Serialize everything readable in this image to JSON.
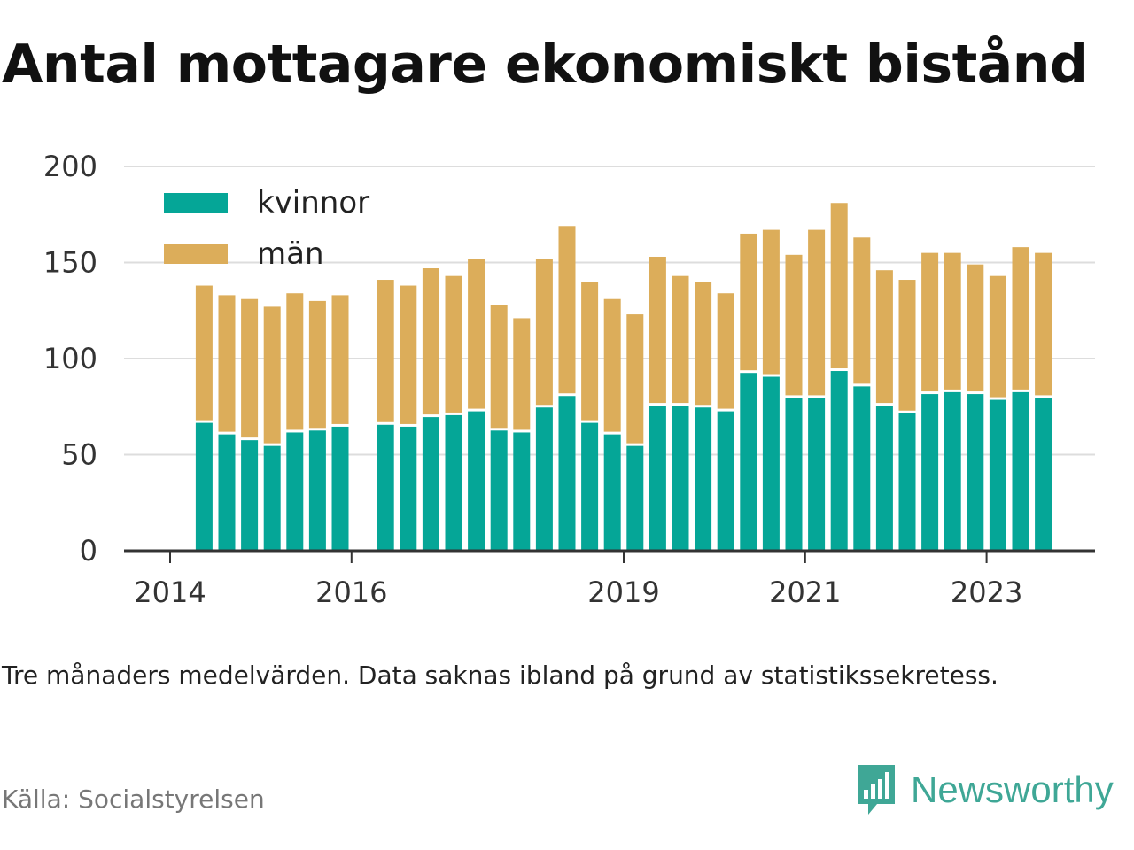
{
  "title": "Antal mottagare ekonomiskt bistånd",
  "note": "Tre månaders medelvärden. Data saknas ibland på grund av statistikssekretess.",
  "source": "Källa: Socialstyrelsen",
  "brand": {
    "name": "Newsworthy",
    "icon": "newsworthy-logo-icon"
  },
  "colors": {
    "kvinnor": "#05a697",
    "man": "#dcad5a",
    "grid": "#dddddd",
    "axis": "#333333"
  },
  "chart_data": {
    "type": "bar",
    "stacked": true,
    "title": "Antal mottagare ekonomiskt bistånd",
    "xlabel": "",
    "ylabel": "",
    "ylim": [
      0,
      200
    ],
    "yticks": [
      0,
      50,
      100,
      150,
      200
    ],
    "xticks": [
      "2014",
      "2016",
      "2019",
      "2021",
      "2023"
    ],
    "grid": true,
    "legend_position": "top-left",
    "x": [
      "2014-Q1",
      "2014-Q2",
      "2014-Q3",
      "2014-Q4",
      "2015-Q1",
      "2015-Q2",
      "2015-Q3",
      "2015-Q4",
      "2016-Q1",
      "2016-Q2",
      "2016-Q3",
      "2016-Q4",
      "2017-Q1",
      "2017-Q2",
      "2017-Q3",
      "2017-Q4",
      "2018-Q1",
      "2018-Q2",
      "2018-Q3",
      "2018-Q4",
      "2019-Q1",
      "2019-Q2",
      "2019-Q3",
      "2019-Q4",
      "2020-Q1",
      "2020-Q2",
      "2020-Q3",
      "2020-Q4",
      "2021-Q1",
      "2021-Q2",
      "2021-Q3",
      "2021-Q4",
      "2022-Q1",
      "2022-Q2",
      "2022-Q3",
      "2022-Q4",
      "2023-Q1",
      "2023-Q2",
      "2023-Q3",
      "2023-Q4"
    ],
    "series": [
      {
        "name": "kvinnor",
        "values": [
          null,
          67,
          61,
          58,
          55,
          62,
          63,
          65,
          null,
          66,
          65,
          70,
          71,
          73,
          63,
          62,
          75,
          81,
          67,
          61,
          55,
          76,
          76,
          75,
          73,
          93,
          91,
          80,
          80,
          94,
          86,
          76,
          72,
          82,
          83,
          82,
          79,
          83,
          80,
          null
        ]
      },
      {
        "name": "män",
        "values": [
          null,
          71,
          72,
          73,
          72,
          72,
          67,
          68,
          null,
          75,
          73,
          77,
          72,
          79,
          65,
          59,
          77,
          88,
          73,
          70,
          68,
          77,
          67,
          65,
          61,
          72,
          76,
          74,
          87,
          87,
          77,
          70,
          69,
          73,
          72,
          67,
          64,
          75,
          75,
          null
        ]
      }
    ],
    "annotations": [
      "Tre månaders medelvärden. Data saknas ibland på grund av statistikssekretess."
    ]
  }
}
